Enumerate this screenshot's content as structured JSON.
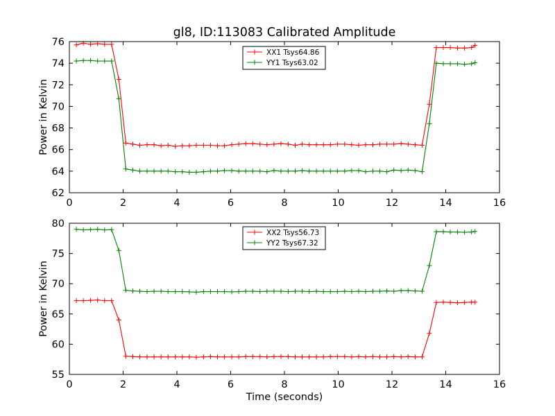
{
  "chart_data": [
    {
      "type": "line",
      "title": "gl8, ID:113083 Calibrated Amplitude",
      "xlabel": "",
      "ylabel": "Power in Kelvin",
      "xlim": [
        0,
        16
      ],
      "ylim": [
        62,
        76
      ],
      "xticks": [
        "0",
        "2",
        "4",
        "6",
        "8",
        "10",
        "12",
        "14",
        "16"
      ],
      "yticks": [
        "62",
        "64",
        "66",
        "68",
        "70",
        "72",
        "74",
        "76"
      ],
      "legend_placement": "top-center",
      "grid": false,
      "x": [
        0.26,
        0.52,
        0.79,
        1.05,
        1.31,
        1.57,
        1.84,
        2.1,
        2.36,
        2.62,
        2.89,
        3.15,
        3.41,
        3.67,
        3.94,
        4.2,
        4.46,
        4.72,
        4.99,
        5.25,
        5.51,
        5.77,
        6.04,
        6.3,
        6.56,
        6.82,
        7.09,
        7.35,
        7.61,
        7.87,
        8.14,
        8.4,
        8.66,
        8.92,
        9.19,
        9.45,
        9.71,
        9.97,
        10.24,
        10.5,
        10.76,
        11.02,
        11.29,
        11.55,
        11.81,
        12.07,
        12.34,
        12.6,
        12.86,
        13.12,
        13.39,
        13.65,
        13.91,
        14.17,
        14.44,
        14.7,
        14.96,
        15.09
      ],
      "series": [
        {
          "name": "XX1 Tsys64.86",
          "color": "#ff0000",
          "values": [
            75.7,
            75.85,
            75.75,
            75.8,
            75.75,
            75.75,
            72.5,
            66.6,
            66.5,
            66.4,
            66.45,
            66.45,
            66.35,
            66.4,
            66.3,
            66.35,
            66.35,
            66.4,
            66.4,
            66.4,
            66.35,
            66.35,
            66.45,
            66.5,
            66.55,
            66.55,
            66.5,
            66.45,
            66.5,
            66.55,
            66.5,
            66.4,
            66.5,
            66.45,
            66.45,
            66.45,
            66.45,
            66.5,
            66.5,
            66.45,
            66.4,
            66.45,
            66.45,
            66.5,
            66.5,
            66.5,
            66.55,
            66.5,
            66.45,
            66.4,
            70.2,
            75.45,
            75.45,
            75.45,
            75.4,
            75.4,
            75.45,
            75.65
          ]
        },
        {
          "name": "YY1 Tsys63.02",
          "color": "#008000",
          "values": [
            74.2,
            74.25,
            74.25,
            74.2,
            74.2,
            74.2,
            70.7,
            64.2,
            64.1,
            64.0,
            64.0,
            64.0,
            64.0,
            64.0,
            63.95,
            63.95,
            63.9,
            63.9,
            63.95,
            64.0,
            64.0,
            64.05,
            64.05,
            64.0,
            64.0,
            64.0,
            64.0,
            63.95,
            64.05,
            64.0,
            64.0,
            64.0,
            64.05,
            64.0,
            64.0,
            64.0,
            64.0,
            64.0,
            64.0,
            64.05,
            64.05,
            63.95,
            64.0,
            64.0,
            63.95,
            64.1,
            64.05,
            64.1,
            64.05,
            63.95,
            68.4,
            74.0,
            73.95,
            73.95,
            73.95,
            73.9,
            73.95,
            74.05
          ]
        }
      ]
    },
    {
      "type": "line",
      "title": "",
      "xlabel": "Time (seconds)",
      "ylabel": "Power in Kelvin",
      "xlim": [
        0,
        16
      ],
      "ylim": [
        55,
        80
      ],
      "xticks": [
        "0",
        "2",
        "4",
        "6",
        "8",
        "10",
        "12",
        "14",
        "16"
      ],
      "yticks": [
        "55",
        "60",
        "65",
        "70",
        "75",
        "80"
      ],
      "legend_placement": "top-center",
      "grid": false,
      "x": [
        0.26,
        0.52,
        0.79,
        1.05,
        1.31,
        1.57,
        1.84,
        2.1,
        2.36,
        2.62,
        2.89,
        3.15,
        3.41,
        3.67,
        3.94,
        4.2,
        4.46,
        4.72,
        4.99,
        5.25,
        5.51,
        5.77,
        6.04,
        6.3,
        6.56,
        6.82,
        7.09,
        7.35,
        7.61,
        7.87,
        8.14,
        8.4,
        8.66,
        8.92,
        9.19,
        9.45,
        9.71,
        9.97,
        10.24,
        10.5,
        10.76,
        11.02,
        11.29,
        11.55,
        11.81,
        12.07,
        12.34,
        12.6,
        12.86,
        13.12,
        13.39,
        13.65,
        13.91,
        14.17,
        14.44,
        14.7,
        14.96,
        15.09
      ],
      "series": [
        {
          "name": "XX2 Tsys56.73",
          "color": "#ff0000",
          "values": [
            67.2,
            67.2,
            67.25,
            67.3,
            67.2,
            67.2,
            64.0,
            58.0,
            57.95,
            57.9,
            57.9,
            57.9,
            57.9,
            57.9,
            57.9,
            57.9,
            57.9,
            57.85,
            57.9,
            57.95,
            57.9,
            57.9,
            57.9,
            57.9,
            57.95,
            57.95,
            57.95,
            57.9,
            57.95,
            57.95,
            57.95,
            57.9,
            57.9,
            57.9,
            57.9,
            57.9,
            57.95,
            57.95,
            57.95,
            57.9,
            57.95,
            57.9,
            57.95,
            57.9,
            57.9,
            57.95,
            57.9,
            57.95,
            57.9,
            57.9,
            61.8,
            66.9,
            66.95,
            66.9,
            66.85,
            66.9,
            66.95,
            66.95
          ]
        },
        {
          "name": "YY2 Tsys67.32",
          "color": "#008000",
          "values": [
            79.0,
            78.9,
            78.95,
            79.0,
            78.9,
            78.95,
            75.5,
            68.9,
            68.8,
            68.75,
            68.7,
            68.75,
            68.75,
            68.7,
            68.7,
            68.7,
            68.65,
            68.6,
            68.7,
            68.7,
            68.7,
            68.7,
            68.65,
            68.7,
            68.75,
            68.75,
            68.7,
            68.75,
            68.75,
            68.75,
            68.7,
            68.75,
            68.75,
            68.7,
            68.75,
            68.7,
            68.7,
            68.7,
            68.75,
            68.7,
            68.75,
            68.7,
            68.75,
            68.75,
            68.8,
            68.75,
            68.85,
            68.85,
            68.8,
            68.75,
            73.0,
            78.6,
            78.6,
            78.55,
            78.55,
            78.5,
            78.55,
            78.65
          ]
        }
      ]
    }
  ]
}
